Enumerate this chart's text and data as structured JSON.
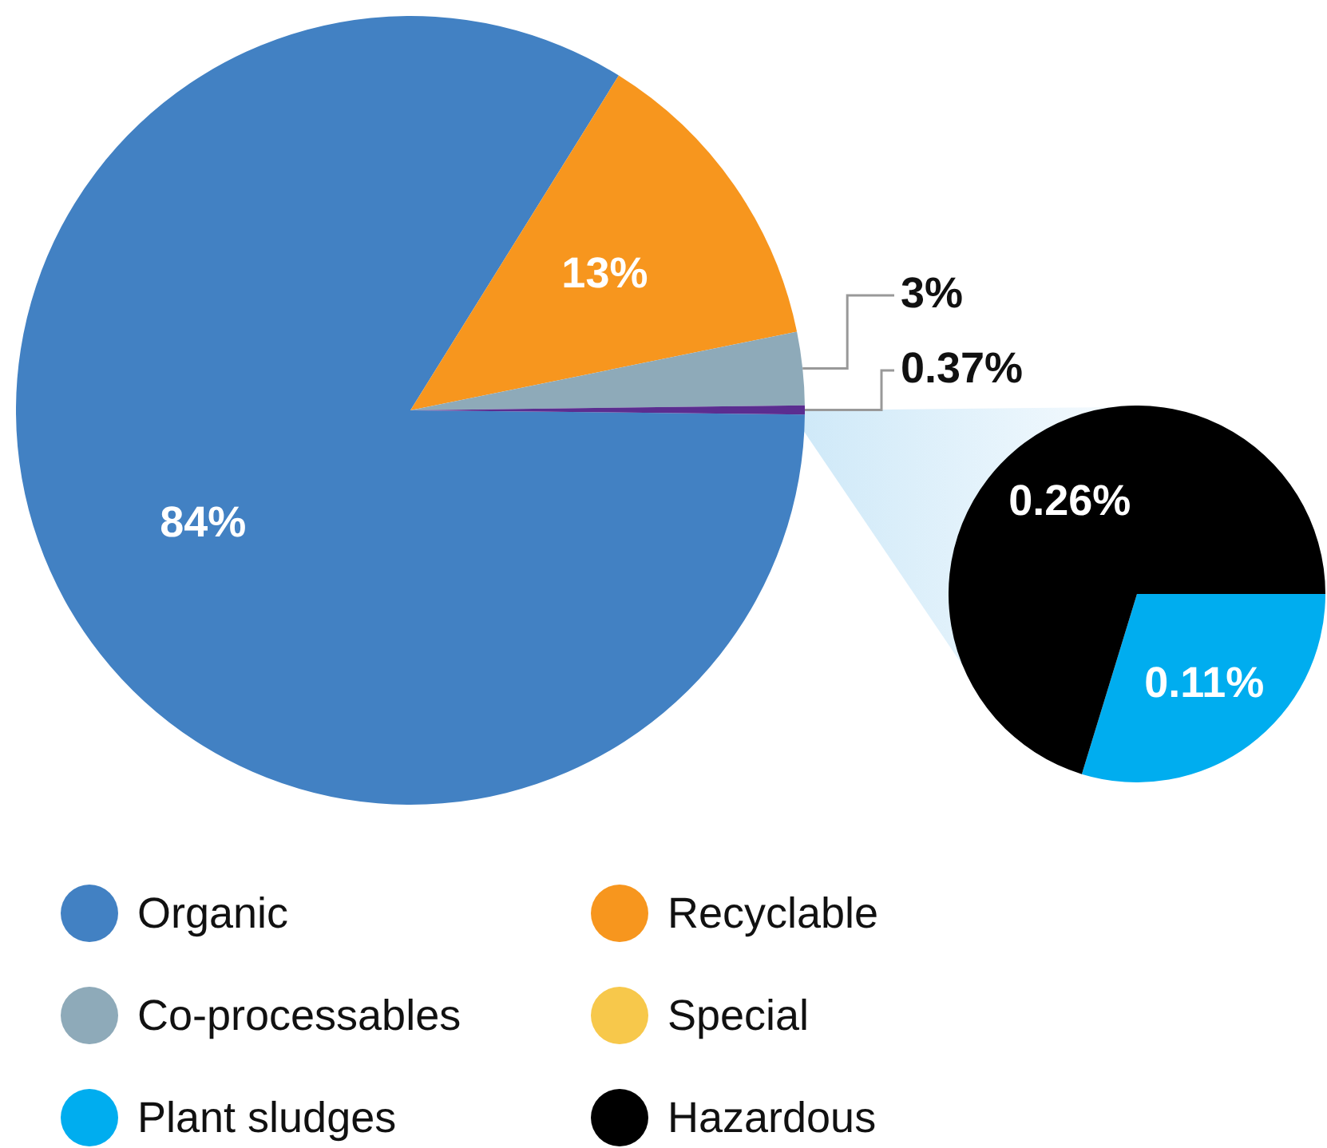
{
  "chart_data": [
    {
      "type": "pie",
      "categories": [
        "Organic",
        "Recyclable",
        "Co-processables",
        "Special",
        null
      ],
      "values": [
        84,
        13,
        3,
        0,
        0.37
      ],
      "colors": [
        "#4281c3",
        "#f7961e",
        "#8eaab9",
        "#f7c84b",
        "#5b2d90"
      ],
      "value_labels": [
        "84%",
        "13%",
        "3%",
        null,
        "0.37%"
      ],
      "legend": "bottom"
    },
    {
      "type": "pie",
      "categories": [
        "Plant sludges",
        "Hazardous"
      ],
      "values": [
        0.11,
        0.26
      ],
      "colors": [
        "#00adef",
        "#000000"
      ],
      "value_labels": [
        "0.11%",
        "0.26%"
      ],
      "legend": "bottom"
    }
  ]
}
